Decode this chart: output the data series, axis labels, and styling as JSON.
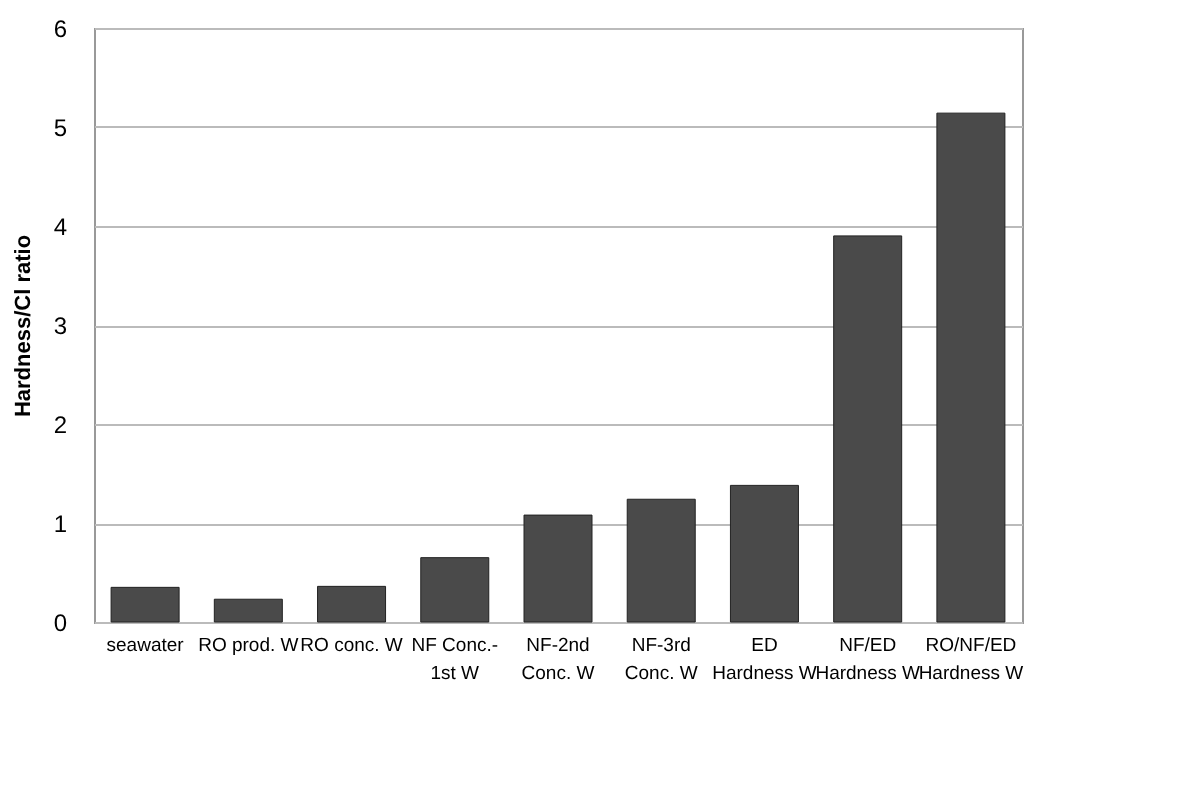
{
  "chart_data": {
    "type": "bar",
    "ylabel": "Hardness/Cl ratio",
    "categories": [
      "seawater",
      "RO prod. W",
      "RO conc. W",
      "NF Conc.-\n1st W",
      "NF-2nd\nConc. W",
      "NF-3rd\nConc. W",
      "ED\nHardness W",
      "NF/ED\nHardness W",
      "RO/NF/ED\nHardness W"
    ],
    "values": [
      0.35,
      0.23,
      0.36,
      0.65,
      1.08,
      1.24,
      1.38,
      3.9,
      5.14
    ],
    "color": "#4a4a4a",
    "ylim": [
      0,
      6
    ],
    "yticks": [
      0,
      1,
      2,
      3,
      4,
      5,
      6
    ],
    "grid": "y"
  }
}
